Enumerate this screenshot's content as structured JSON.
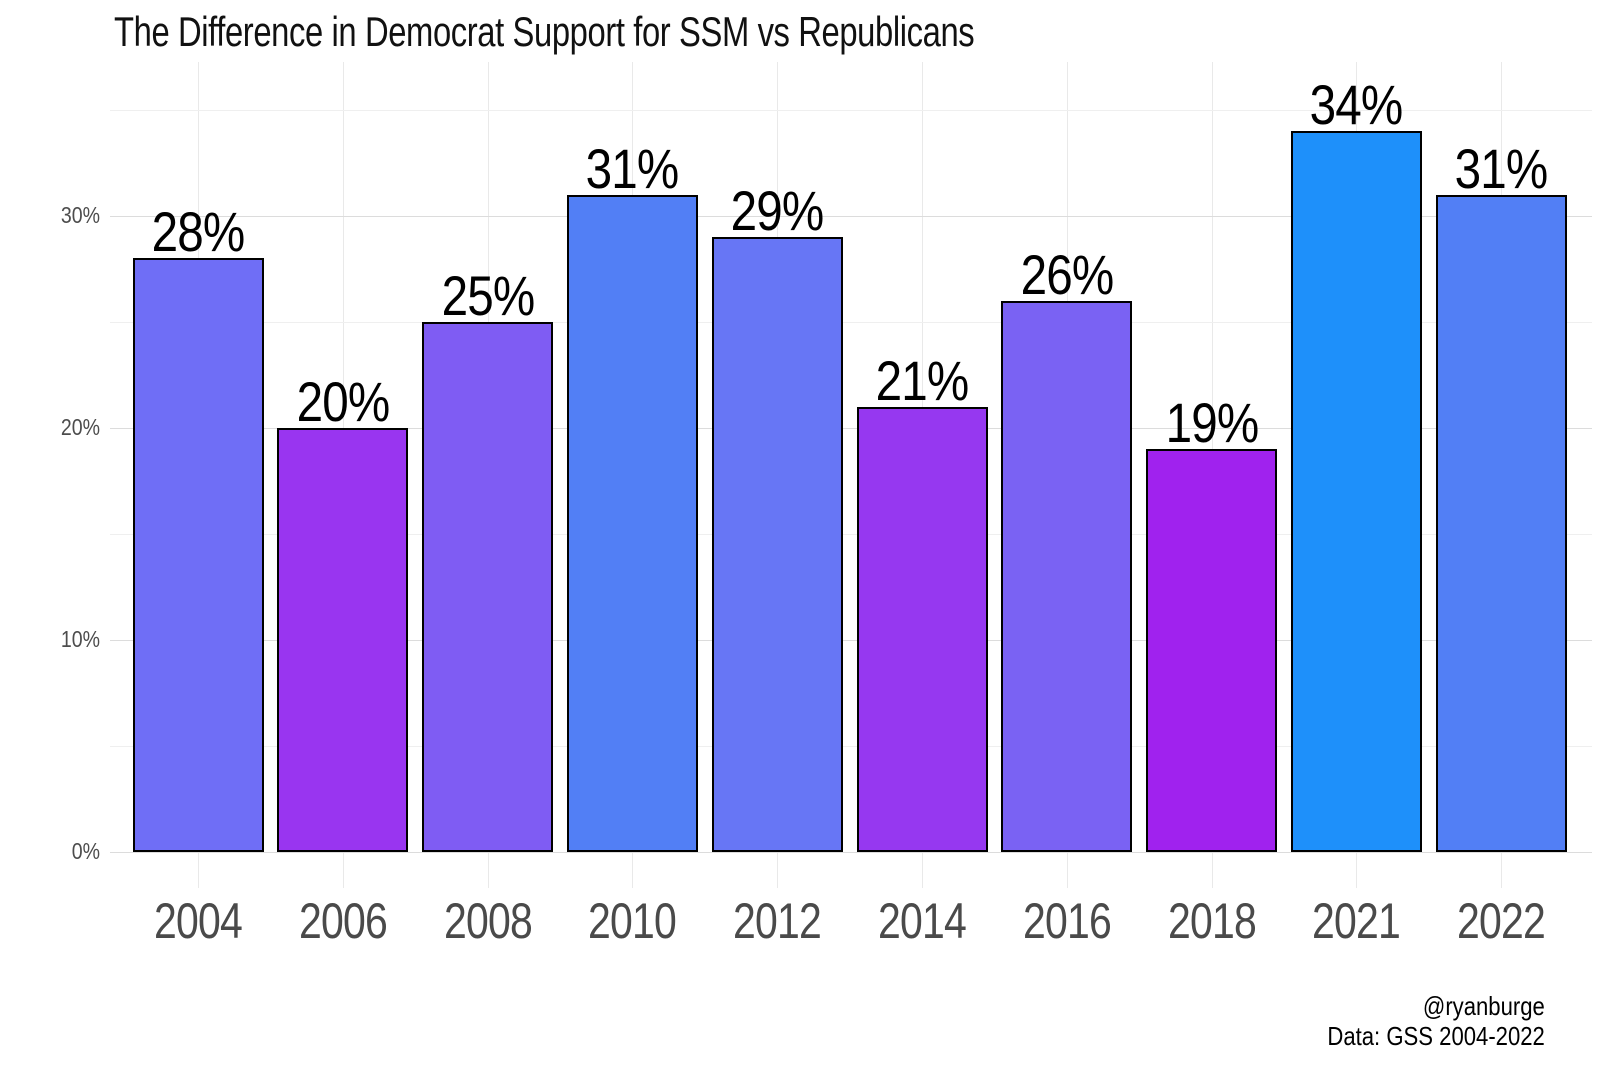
{
  "title": "The Difference in Democrat Support for SSM vs Republicans",
  "caption": {
    "line1": "@ryanburge",
    "line2": "Data: GSS 2004-2022"
  },
  "colors": {
    "background": "#ffffff",
    "bar_stroke": "#000000",
    "grid_major": "#dcdcdc",
    "grid_minor": "#efefef",
    "grid_vertical": "#e9e9e9",
    "axis_text": "#4d4d4d",
    "label_text": "#000000"
  },
  "chart_data": {
    "type": "bar",
    "title": "The Difference in Democrat Support for SSM vs Republicans",
    "xlabel": "",
    "ylabel": "",
    "categories": [
      "2004",
      "2006",
      "2008",
      "2010",
      "2012",
      "2014",
      "2016",
      "2018",
      "2021",
      "2022"
    ],
    "values": [
      28,
      20,
      25,
      31,
      29,
      21,
      26,
      19,
      34,
      31
    ],
    "value_labels": [
      "28%",
      "20%",
      "25%",
      "31%",
      "29%",
      "21%",
      "26%",
      "19%",
      "34%",
      "31%"
    ],
    "bar_colors": [
      "#6f6ef6",
      "#9935f0",
      "#7f5cf3",
      "#527ff5",
      "#6776f5",
      "#9638f0",
      "#7a62f3",
      "#a022ee",
      "#1e90fa",
      "#527ff5"
    ],
    "ylim": [
      0,
      37
    ],
    "y_major_ticks": [
      0,
      10,
      20,
      30
    ],
    "y_major_tick_labels": [
      "0%",
      "10%",
      "20%",
      "30%"
    ],
    "y_minor_ticks": [
      5,
      15,
      25,
      35
    ],
    "grid": "on",
    "legend": "none"
  }
}
